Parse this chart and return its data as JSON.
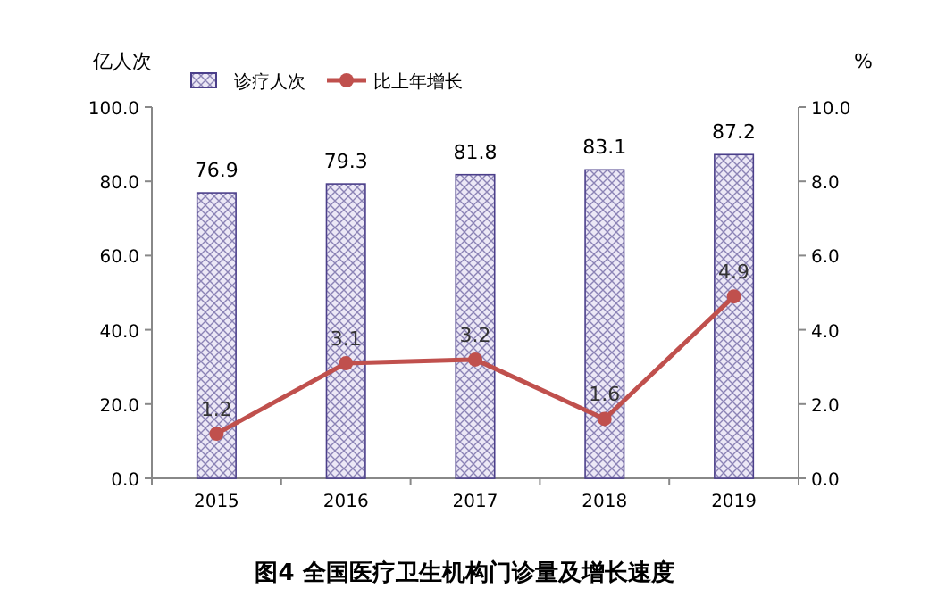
{
  "chart_data": {
    "type": "bar",
    "title": "图4    全国医疗卫生机构门诊量及增长速度",
    "ylabel": "亿人次",
    "y2label": "%",
    "categories": [
      "2015",
      "2016",
      "2017",
      "2018",
      "2019"
    ],
    "series": [
      {
        "name": "诊疗人次",
        "color": "#4b3f8a",
        "values": [
          76.9,
          79.3,
          81.8,
          83.1,
          87.2
        ]
      },
      {
        "name": "比上年增长",
        "type": "line",
        "axis": "y2",
        "color": "#c0504d",
        "values": [
          1.2,
          3.1,
          3.2,
          1.6,
          4.9
        ]
      }
    ],
    "ylim": [
      0,
      100
    ],
    "yticks": [
      {
        "value": 0,
        "label": "0.0"
      },
      {
        "value": 20,
        "label": "20.0"
      },
      {
        "value": 40,
        "label": "40.0"
      },
      {
        "value": 60,
        "label": "60.0"
      },
      {
        "value": 80,
        "label": "80.0"
      },
      {
        "value": 100,
        "label": "100.0"
      }
    ],
    "y2lim": [
      0,
      10
    ],
    "y2ticks": [
      {
        "value": 0,
        "label": "0.0"
      },
      {
        "value": 2,
        "label": "2.0"
      },
      {
        "value": 4,
        "label": "4.0"
      },
      {
        "value": 6,
        "label": "6.0"
      },
      {
        "value": 8,
        "label": "8.0"
      },
      {
        "value": 10,
        "label": "10.0"
      }
    ],
    "data_labels": true,
    "legend": "top",
    "marker": "circle",
    "line_style": "solid"
  }
}
